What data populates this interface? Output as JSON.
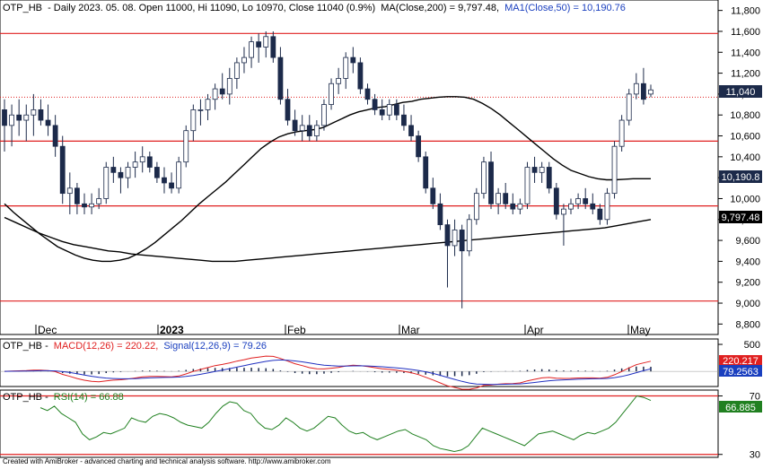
{
  "main_title": {
    "symbol": "OTP_HB",
    "info": "- Daily 2023. 05. 08. Open 11000, Hi 11090, Lo 10970, Close 11040 (0.9%)",
    "ma200_label": "MA(Close,200) = 9,797.48,",
    "ma50_label": "MA1(Close,50) = 10,190.76"
  },
  "macd_title": {
    "symbol": "OTP_HB -",
    "macd_label": "MACD(12,26) = 220.22,",
    "signal_label": "Signal(12,26,9) = 79.26"
  },
  "rsi_title": {
    "symbol": "OTP_HB -",
    "rsi_label": "RSI(14) = 66.88"
  },
  "footer": "Created with AmiBroker - advanced charting and technical analysis software. http://www.amibroker.com",
  "price_badges": {
    "close": "11,040",
    "ma50": "10,190.8",
    "ma200": "9,797.48",
    "macd": "220.217",
    "signal": "79.2563",
    "rsi": "66.885"
  },
  "colors": {
    "up_candle": "#ffffff",
    "down_candle": "#1c2a4a",
    "horizontal_lines": "#e02020",
    "ma_lines": "#000000",
    "macd_line": "#e02020",
    "signal_line": "#2030c0",
    "rsi_line": "#208020",
    "rsi_badge": "#208020",
    "signal_badge": "#1a3fbf",
    "macd_badge": "#e02020"
  },
  "chart_data": [
    {
      "type": "candlestick",
      "title": "OTP_HB - Daily 2023. 05. 08. Open 11000, Hi 11090, Lo 10970, Close 11040 (0.9%)",
      "x_labels": [
        "Dec",
        "2023",
        "Feb",
        "Mar",
        "Apr",
        "May"
      ],
      "ylim": [
        8700,
        11900
      ],
      "y_ticks": [
        "8,800",
        "9,000",
        "9,200",
        "9,400",
        "9,600",
        "9,800",
        "10,000",
        "10,200",
        "10,400",
        "10,600",
        "10,800",
        "11,000",
        "11,200",
        "11,400",
        "11,600",
        "11,800"
      ],
      "horizontal_levels": [
        11580,
        10550,
        9930,
        9020
      ],
      "dotted_level": 10970,
      "ohlc": [
        [
          10850,
          10950,
          10450,
          10700
        ],
        [
          10700,
          10900,
          10500,
          10800
        ],
        [
          10800,
          10950,
          10600,
          10750
        ],
        [
          10750,
          10900,
          10550,
          10800
        ],
        [
          10800,
          11000,
          10600,
          10850
        ],
        [
          10850,
          10950,
          10700,
          10750
        ],
        [
          10750,
          10900,
          10600,
          10700
        ],
        [
          10700,
          10800,
          10400,
          10500
        ],
        [
          10500,
          10600,
          9950,
          10050
        ],
        [
          10050,
          10250,
          9850,
          10100
        ],
        [
          10100,
          10150,
          9850,
          9950
        ],
        [
          9950,
          10050,
          9850,
          9920
        ],
        [
          9920,
          10050,
          9850,
          9950
        ],
        [
          9950,
          10100,
          9900,
          10000
        ],
        [
          10000,
          10350,
          9950,
          10300
        ],
        [
          10300,
          10400,
          10150,
          10250
        ],
        [
          10250,
          10300,
          10050,
          10200
        ],
        [
          10200,
          10350,
          10100,
          10300
        ],
        [
          10300,
          10450,
          10200,
          10350
        ],
        [
          10350,
          10500,
          10250,
          10400
        ],
        [
          10400,
          10450,
          10250,
          10300
        ],
        [
          10300,
          10350,
          10150,
          10200
        ],
        [
          10200,
          10300,
          10050,
          10150
        ],
        [
          10150,
          10250,
          10050,
          10100
        ],
        [
          10100,
          10400,
          10050,
          10350
        ],
        [
          10350,
          10700,
          10300,
          10650
        ],
        [
          10650,
          10900,
          10550,
          10850
        ],
        [
          10850,
          10950,
          10700,
          10850
        ],
        [
          10850,
          11000,
          10750,
          10950
        ],
        [
          10950,
          11100,
          10850,
          11050
        ],
        [
          11050,
          11200,
          10950,
          11000
        ],
        [
          11000,
          11250,
          10900,
          11150
        ],
        [
          11150,
          11350,
          11050,
          11300
        ],
        [
          11300,
          11450,
          11200,
          11350
        ],
        [
          11350,
          11550,
          11250,
          11500
        ],
        [
          11500,
          11580,
          11300,
          11450
        ],
        [
          11450,
          11600,
          11350,
          11550
        ],
        [
          11550,
          11600,
          11300,
          11350
        ],
        [
          11350,
          11450,
          10900,
          10950
        ],
        [
          10950,
          11050,
          10700,
          10750
        ],
        [
          10750,
          10850,
          10600,
          10650
        ],
        [
          10650,
          10800,
          10550,
          10700
        ],
        [
          10700,
          10800,
          10550,
          10600
        ],
        [
          10600,
          10750,
          10550,
          10700
        ],
        [
          10700,
          10950,
          10650,
          10900
        ],
        [
          10900,
          11150,
          10850,
          11100
        ],
        [
          11100,
          11250,
          11000,
          11150
        ],
        [
          11150,
          11400,
          11050,
          11350
        ],
        [
          11350,
          11450,
          11200,
          11300
        ],
        [
          11300,
          11350,
          11000,
          11050
        ],
        [
          11050,
          11100,
          10900,
          10950
        ],
        [
          10950,
          11000,
          10800,
          10850
        ],
        [
          10850,
          10950,
          10750,
          10800
        ],
        [
          10800,
          10950,
          10750,
          10900
        ],
        [
          10900,
          10950,
          10750,
          10800
        ],
        [
          10800,
          10900,
          10650,
          10700
        ],
        [
          10700,
          10800,
          10550,
          10600
        ],
        [
          10600,
          10650,
          10350,
          10400
        ],
        [
          10400,
          10450,
          10050,
          10100
        ],
        [
          10100,
          10200,
          9900,
          9950
        ],
        [
          9950,
          10050,
          9700,
          9750
        ],
        [
          9750,
          9800,
          9150,
          9550
        ],
        [
          9550,
          9800,
          9450,
          9700
        ],
        [
          9700,
          9750,
          8950,
          9500
        ],
        [
          9500,
          9850,
          9450,
          9800
        ],
        [
          9800,
          10100,
          9750,
          10050
        ],
        [
          10050,
          10400,
          10000,
          10350
        ],
        [
          10350,
          10450,
          9900,
          9950
        ],
        [
          9950,
          10100,
          9850,
          10050
        ],
        [
          10050,
          10150,
          9900,
          9950
        ],
        [
          9950,
          10050,
          9850,
          9900
        ],
        [
          9900,
          10000,
          9850,
          9950
        ],
        [
          9950,
          10350,
          9900,
          10300
        ],
        [
          10300,
          10400,
          10150,
          10250
        ],
        [
          10250,
          10350,
          10150,
          10300
        ],
        [
          10300,
          10350,
          10050,
          10100
        ],
        [
          10100,
          10150,
          9800,
          9850
        ],
        [
          9850,
          9950,
          9550,
          9900
        ],
        [
          9900,
          10000,
          9850,
          9950
        ],
        [
          9950,
          10050,
          9900,
          10000
        ],
        [
          10000,
          10100,
          9900,
          9950
        ],
        [
          9950,
          10050,
          9850,
          9900
        ],
        [
          9900,
          9950,
          9750,
          9800
        ],
        [
          9800,
          10100,
          9750,
          10050
        ],
        [
          10050,
          10550,
          10000,
          10500
        ],
        [
          10500,
          10800,
          10450,
          10750
        ],
        [
          10750,
          11050,
          10700,
          11000
        ],
        [
          11000,
          11200,
          10950,
          11100
        ],
        [
          11100,
          11250,
          10900,
          10950
        ],
        [
          11000,
          11090,
          10970,
          11040
        ]
      ],
      "ma50": {
        "name": "MA1(Close,50)",
        "last": 10190.76,
        "values": [
          9950,
          9870,
          9800,
          9730,
          9660,
          9600,
          9540,
          9500,
          9460,
          9430,
          9410,
          9400,
          9400,
          9410,
          9430,
          9470,
          9520,
          9580,
          9650,
          9720,
          9790,
          9870,
          9950,
          10020,
          10090,
          10160,
          10240,
          10320,
          10400,
          10480,
          10540,
          10590,
          10620,
          10640,
          10650,
          10660,
          10680,
          10720,
          10760,
          10800,
          10830,
          10850,
          10870,
          10880,
          10900,
          10920,
          10930,
          10950,
          10960,
          10970,
          10975,
          10975,
          10970,
          10950,
          10910,
          10860,
          10800,
          10730,
          10660,
          10590,
          10520,
          10450,
          10380,
          10320,
          10270,
          10240,
          10210,
          10190,
          10180,
          10180,
          10185,
          10190,
          10190,
          10190
        ]
      },
      "ma200": {
        "name": "MA(Close,200)",
        "last": 9797.48,
        "values": [
          9820,
          9770,
          9720,
          9670,
          9630,
          9590,
          9560,
          9540,
          9520,
          9500,
          9490,
          9470,
          9460,
          9450,
          9440,
          9430,
          9420,
          9410,
          9400,
          9400,
          9400,
          9410,
          9420,
          9430,
          9440,
          9450,
          9460,
          9470,
          9480,
          9490,
          9500,
          9510,
          9520,
          9530,
          9540,
          9550,
          9560,
          9570,
          9580,
          9590,
          9600,
          9610,
          9620,
          9630,
          9640,
          9650,
          9660,
          9670,
          9680,
          9690,
          9700,
          9710,
          9720,
          9740,
          9760,
          9780,
          9800
        ]
      }
    },
    {
      "type": "macd",
      "title": "OTP_HB - MACD(12,26) = 220.22, Signal(12,26,9) = 79.26",
      "ylim": [
        -280,
        600
      ],
      "y_ticks": [
        "500"
      ],
      "macd": {
        "name": "MACD(12,26)",
        "last": 220.22
      },
      "signal": {
        "name": "Signal(12,26,9)",
        "last": 79.26
      }
    },
    {
      "type": "rsi",
      "title": "OTP_HB - RSI(14) = 66.88",
      "ylim": [
        28,
        74
      ],
      "y_ticks": [
        "70",
        "30"
      ],
      "rsi": {
        "name": "RSI(14)",
        "last": 66.88,
        "values": [
          62,
          60,
          63,
          58,
          55,
          52,
          44,
          40,
          42,
          45,
          44,
          46,
          48,
          55,
          53,
          52,
          56,
          58,
          57,
          55,
          52,
          50,
          49,
          48,
          52,
          58,
          63,
          66,
          65,
          60,
          58,
          52,
          48,
          47,
          50,
          55,
          52,
          48,
          46,
          48,
          52,
          56,
          55,
          50,
          46,
          44,
          45,
          42,
          40,
          42,
          44,
          46,
          47,
          44,
          42,
          40,
          36,
          34,
          33,
          32,
          33,
          36,
          42,
          48,
          46,
          44,
          42,
          40,
          38,
          36,
          40,
          44,
          45,
          46,
          44,
          42,
          40,
          43,
          45,
          44,
          46,
          48,
          52,
          58,
          64,
          70,
          69,
          66.88
        ]
      }
    }
  ]
}
